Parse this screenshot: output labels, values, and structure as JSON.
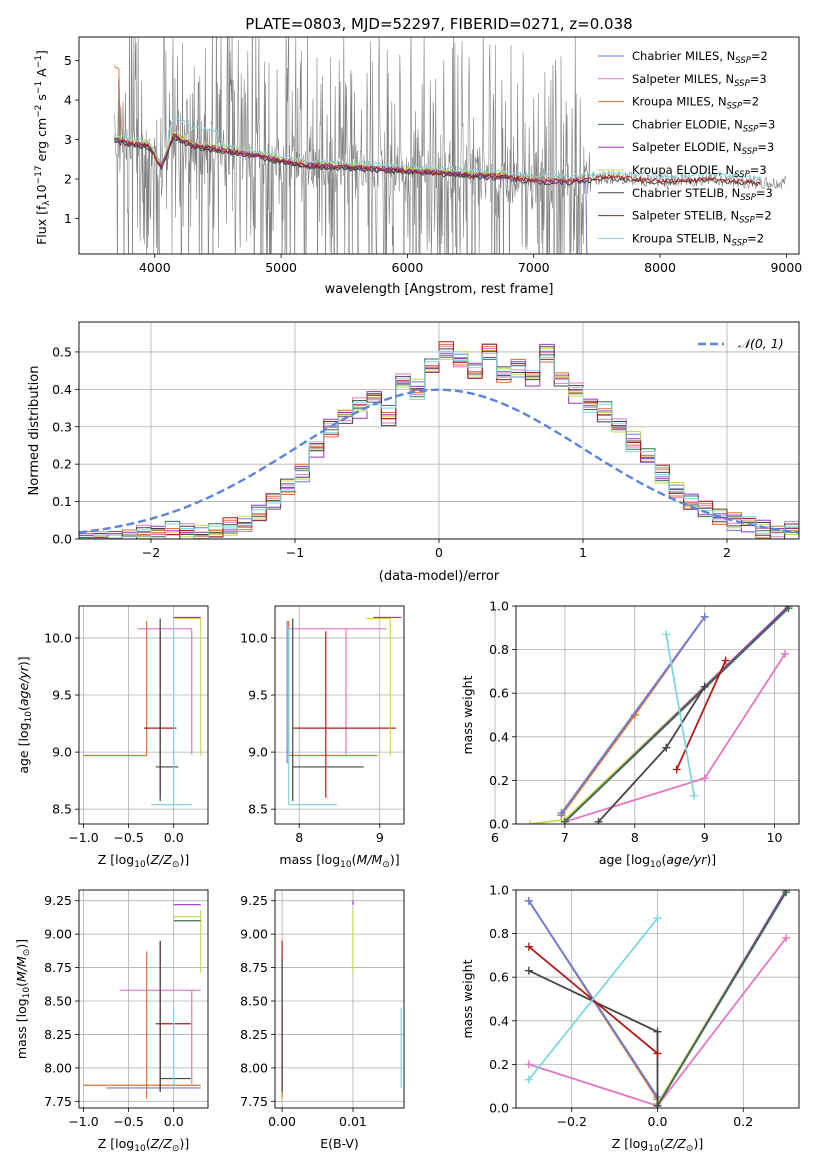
{
  "title": "PLATE=0803, MJD=52297, FIBERID=0271, z=0.038",
  "colors": {
    "chabrier_miles": "#6b7fd7",
    "salpeter_miles": "#e377c2",
    "kroupa_miles": "#d9722b",
    "chabrier_elodie": "#3c6e4f",
    "salpeter_elodie": "#9b30c9",
    "kroupa_elodie": "#c8d94b",
    "chabrier_stelib": "#444444",
    "salpeter_stelib": "#b01c1c",
    "kroupa_stelib": "#7fd6dc",
    "data_spectrum": "#808080",
    "normal_curve": "#5b86d6"
  },
  "legend_models": [
    {
      "key": "chabrier_miles",
      "prefix": "Chabrier MILES, N",
      "sub": "SSP",
      "suffix": "=2"
    },
    {
      "key": "salpeter_miles",
      "prefix": "Salpeter MILES, N",
      "sub": "SSP",
      "suffix": "=3"
    },
    {
      "key": "kroupa_miles",
      "prefix": "Kroupa MILES, N",
      "sub": "SSP",
      "suffix": "=2"
    },
    {
      "key": "chabrier_elodie",
      "prefix": "Chabrier ELODIE, N",
      "sub": "SSP",
      "suffix": "=3"
    },
    {
      "key": "salpeter_elodie",
      "prefix": "Salpeter ELODIE, N",
      "sub": "SSP",
      "suffix": "=3"
    },
    {
      "key": "kroupa_elodie",
      "prefix": "Kroupa ELODIE, N",
      "sub": "SSP",
      "suffix": "=3"
    },
    {
      "key": "chabrier_stelib",
      "prefix": "Chabrier STELIB, N",
      "sub": "SSP",
      "suffix": "=3"
    },
    {
      "key": "salpeter_stelib",
      "prefix": "Salpeter STELIB, N",
      "sub": "SSP",
      "suffix": "=2"
    },
    {
      "key": "kroupa_stelib",
      "prefix": "Kroupa STELIB, N",
      "sub": "SSP",
      "suffix": "=2"
    }
  ],
  "chart_data": [
    {
      "id": "spectrum",
      "type": "line",
      "xlabel": "wavelength [Angstrom, rest frame]",
      "ylabel": "Flux [f_λ 10^-17 erg cm^-2 s^-1 A^-1]",
      "xlim": [
        3400,
        9100
      ],
      "ylim": [
        0.1,
        5.6
      ],
      "xticks": [
        4000,
        5000,
        6000,
        7000,
        8000,
        9000
      ],
      "yticks": [
        1,
        2,
        3,
        4,
        5
      ],
      "grid": false,
      "legend_position": "top-right",
      "data_range": [
        3680,
        9000
      ],
      "model_continuum": [
        {
          "x": 3680,
          "y": 3.0
        },
        {
          "x": 3800,
          "y": 2.9
        },
        {
          "x": 3950,
          "y": 2.85
        },
        {
          "x": 4050,
          "y": 2.3
        },
        {
          "x": 4150,
          "y": 3.1
        },
        {
          "x": 4300,
          "y": 2.85
        },
        {
          "x": 4500,
          "y": 2.75
        },
        {
          "x": 4800,
          "y": 2.6
        },
        {
          "x": 5000,
          "y": 2.45
        },
        {
          "x": 5200,
          "y": 2.35
        },
        {
          "x": 5500,
          "y": 2.3
        },
        {
          "x": 5800,
          "y": 2.25
        },
        {
          "x": 6000,
          "y": 2.2
        },
        {
          "x": 6300,
          "y": 2.15
        },
        {
          "x": 6500,
          "y": 2.1
        },
        {
          "x": 6800,
          "y": 2.05
        },
        {
          "x": 7000,
          "y": 1.95
        },
        {
          "x": 7300,
          "y": 1.95
        },
        {
          "x": 7600,
          "y": 2.05
        },
        {
          "x": 8000,
          "y": 1.95
        },
        {
          "x": 8400,
          "y": 2.0
        },
        {
          "x": 8800,
          "y": 1.9
        }
      ],
      "series_ends": [
        {
          "key": "kroupa_miles",
          "end": 7420,
          "offset": 0.05
        },
        {
          "key": "salpeter_miles",
          "end": 7420,
          "offset": -0.03
        },
        {
          "key": "chabrier_miles",
          "end": 7420,
          "offset": 0.0
        },
        {
          "key": "kroupa_elodie",
          "end": 6800,
          "offset": 0.08
        },
        {
          "key": "salpeter_elodie",
          "end": 6800,
          "offset": 0.02
        },
        {
          "key": "chabrier_elodie",
          "end": 6800,
          "offset": -0.02
        },
        {
          "key": "chabrier_stelib",
          "end": 8800,
          "offset": -0.04
        },
        {
          "key": "salpeter_stelib",
          "end": 8800,
          "offset": 0.0
        },
        {
          "key": "kroupa_stelib",
          "end": 8800,
          "offset": 0.12
        }
      ]
    },
    {
      "id": "residuals",
      "type": "bar",
      "xlabel": "(data-model)/error",
      "ylabel": "Normed distribution",
      "xlim": [
        -2.5,
        2.5
      ],
      "ylim": [
        0,
        0.58
      ],
      "xticks": [
        -2,
        -1,
        0,
        1,
        2
      ],
      "yticks": [
        0.0,
        0.1,
        0.2,
        0.3,
        0.4,
        0.5
      ],
      "grid": true,
      "legend_position": "top-right",
      "legend_label": "𝒩(0, 1)",
      "bin_width": 0.1,
      "bin_start": -2.5,
      "histogram": [
        0.0,
        0.0,
        0.0,
        0.01,
        0.01,
        0.02,
        0.02,
        0.02,
        0.01,
        0.02,
        0.03,
        0.04,
        0.07,
        0.1,
        0.14,
        0.18,
        0.24,
        0.3,
        0.33,
        0.35,
        0.38,
        0.33,
        0.42,
        0.4,
        0.46,
        0.5,
        0.48,
        0.45,
        0.5,
        0.44,
        0.46,
        0.43,
        0.5,
        0.43,
        0.39,
        0.36,
        0.34,
        0.3,
        0.26,
        0.22,
        0.17,
        0.13,
        0.1,
        0.08,
        0.06,
        0.05,
        0.04,
        0.03,
        0.02,
        0.02
      ]
    },
    {
      "id": "age-vs-Z",
      "type": "scatter",
      "xlabel": "Z [log10(Z/Z⊙)]",
      "ylabel": "age [log10(age/yr)]",
      "xlim": [
        -1.05,
        0.38
      ],
      "ylim": [
        8.37,
        10.28
      ],
      "xticks": [
        -1.0,
        -0.5,
        0.0
      ],
      "yticks": [
        8.5,
        9.0,
        9.5,
        10.0
      ],
      "grid": true,
      "points": [
        {
          "key": "kroupa_miles",
          "x": -0.3,
          "xerr": [
            0.7,
            0.0
          ],
          "y": 8.97,
          "yerr": [
            0.0,
            1.18
          ]
        },
        {
          "key": "salpeter_miles",
          "x": 0.2,
          "xerr": [
            0.6,
            0.0
          ],
          "y": 10.08,
          "yerr": [
            1.1,
            0.0
          ]
        },
        {
          "key": "salpeter_stelib",
          "x": -0.15,
          "xerr": [
            0.18,
            0.18
          ],
          "y": 9.21,
          "yerr": [
            0.61,
            0.85
          ]
        },
        {
          "key": "chabrier_stelib",
          "x": -0.15,
          "xerr": [
            0.05,
            0.2
          ],
          "y": 8.87,
          "yerr": [
            0.3,
            1.3
          ]
        },
        {
          "key": "kroupa_stelib",
          "x": 0.0,
          "xerr": [
            0.25,
            0.2
          ],
          "y": 8.54,
          "yerr": [
            0.0,
            1.55
          ]
        },
        {
          "key": "kroupa_elodie",
          "x": 0.3,
          "xerr": [
            0.3,
            0.0
          ],
          "y": 10.17,
          "yerr": [
            1.2,
            0.0
          ]
        },
        {
          "key": "salpeter_elodie",
          "x": 0.3,
          "xerr": [
            0.3,
            0.0
          ],
          "y": 10.18,
          "yerr": [
            0.0,
            0.0
          ]
        }
      ]
    },
    {
      "id": "age-vs-mass",
      "type": "scatter",
      "xlabel": "mass [log10(M/M⊙)]",
      "ylabel": "",
      "xlim": [
        7.7,
        9.3
      ],
      "ylim": [
        8.37,
        10.28
      ],
      "xticks": [
        8,
        9
      ],
      "yticks": [
        8.5,
        9.0,
        9.5,
        10.0
      ],
      "grid": true,
      "points": [
        {
          "key": "kroupa_miles",
          "x": 7.87,
          "xerr": [
            0.0,
            1.1
          ],
          "y": 8.97,
          "yerr": [
            0.0,
            1.18
          ]
        },
        {
          "key": "salpeter_miles",
          "x": 8.58,
          "xerr": [
            0.7,
            0.5
          ],
          "y": 10.08,
          "yerr": [
            1.1,
            0.0
          ]
        },
        {
          "key": "salpeter_stelib",
          "x": 8.33,
          "xerr": [
            0.4,
            0.87
          ],
          "y": 9.21,
          "yerr": [
            0.61,
            0.85
          ]
        },
        {
          "key": "chabrier_stelib",
          "x": 7.92,
          "xerr": [
            0.0,
            0.88
          ],
          "y": 8.87,
          "yerr": [
            0.3,
            1.3
          ]
        },
        {
          "key": "kroupa_stelib",
          "x": 7.87,
          "xerr": [
            0.0,
            0.6
          ],
          "y": 8.54,
          "yerr": [
            0.0,
            1.55
          ]
        },
        {
          "key": "chabrier_miles",
          "x": 7.85,
          "xerr": [
            0.0,
            0.0
          ],
          "y": 9.5,
          "yerr": [
            0.6,
            0.65
          ]
        },
        {
          "key": "kroupa_elodie",
          "x": 9.13,
          "xerr": [
            0.3,
            0.0
          ],
          "y": 10.17,
          "yerr": [
            1.2,
            0.0
          ]
        },
        {
          "key": "salpeter_elodie",
          "x": 9.22,
          "xerr": [
            0.3,
            0.05
          ],
          "y": 10.18,
          "yerr": [
            0.0,
            0.0
          ]
        }
      ]
    },
    {
      "id": "mass-weight-vs-age",
      "type": "line",
      "xlabel": "age [log10(age/yr)]",
      "ylabel": "mass weight",
      "xlim": [
        6.3,
        10.35
      ],
      "ylim": [
        0.0,
        1.0
      ],
      "xticks": [
        6,
        7,
        8,
        9,
        10
      ],
      "yticks": [
        0.0,
        0.2,
        0.4,
        0.6,
        0.8,
        1.0
      ],
      "grid": true,
      "series": [
        {
          "key": "kroupa_miles",
          "points": [
            [
              6.95,
              0.04
            ],
            [
              8.0,
              0.5
            ],
            [
              9.0,
              0.95
            ]
          ]
        },
        {
          "key": "chabrier_miles",
          "points": [
            [
              6.95,
              0.05
            ],
            [
              9.0,
              0.95
            ]
          ]
        },
        {
          "key": "salpeter_miles",
          "points": [
            [
              7.0,
              0.01
            ],
            [
              9.0,
              0.21
            ],
            [
              10.15,
              0.78
            ]
          ]
        },
        {
          "key": "kroupa_elodie",
          "points": [
            [
              6.5,
              0.0
            ],
            [
              7.0,
              0.02
            ],
            [
              10.2,
              1.0
            ]
          ]
        },
        {
          "key": "salpeter_elodie",
          "points": [
            [
              7.0,
              0.01
            ],
            [
              10.2,
              1.0
            ]
          ]
        },
        {
          "key": "chabrier_elodie",
          "points": [
            [
              7.0,
              0.01
            ],
            [
              10.2,
              0.99
            ]
          ]
        },
        {
          "key": "chabrier_stelib",
          "points": [
            [
              7.48,
              0.01
            ],
            [
              8.45,
              0.35
            ],
            [
              9.0,
              0.63
            ]
          ]
        },
        {
          "key": "salpeter_stelib",
          "points": [
            [
              8.6,
              0.25
            ],
            [
              9.3,
              0.75
            ]
          ]
        },
        {
          "key": "kroupa_stelib",
          "points": [
            [
              8.45,
              0.87
            ],
            [
              8.85,
              0.13
            ]
          ]
        }
      ]
    },
    {
      "id": "mass-vs-Z",
      "type": "scatter",
      "xlabel": "Z [log10(Z/Z⊙)]",
      "ylabel": "mass [log10(M/M⊙)]",
      "xlim": [
        -1.05,
        0.38
      ],
      "ylim": [
        7.7,
        9.33
      ],
      "xticks": [
        -1.0,
        -0.5,
        0.0
      ],
      "yticks": [
        7.75,
        8.0,
        8.25,
        8.5,
        8.75,
        9.0,
        9.25
      ],
      "grid": true,
      "points": [
        {
          "key": "kroupa_miles",
          "x": -0.3,
          "xerr": [
            0.7,
            0.6
          ],
          "y": 7.87,
          "yerr": [
            0.1,
            1.0
          ]
        },
        {
          "key": "chabrier_miles",
          "x": -0.3,
          "xerr": [
            0.45,
            0.6
          ],
          "y": 7.85,
          "yerr": [
            0.0,
            0.0
          ]
        },
        {
          "key": "salpeter_miles",
          "x": 0.2,
          "xerr": [
            0.8,
            0.1
          ],
          "y": 8.58,
          "yerr": [
            0.7,
            0.0
          ]
        },
        {
          "key": "salpeter_stelib",
          "x": -0.15,
          "xerr": [
            0.05,
            0.34
          ],
          "y": 8.33,
          "yerr": [
            0.5,
            0.62
          ]
        },
        {
          "key": "chabrier_stelib",
          "x": -0.15,
          "xerr": [
            0.0,
            0.34
          ],
          "y": 7.92,
          "yerr": [
            0.1,
            1.03
          ]
        },
        {
          "key": "kroupa_stelib",
          "x": 0.0,
          "xerr": [
            0.0,
            0.0
          ],
          "y": 8.1,
          "yerr": [
            0.25,
            0.35
          ]
        },
        {
          "key": "kroupa_elodie",
          "x": 0.3,
          "xerr": [
            0.3,
            0.0
          ],
          "y": 9.13,
          "yerr": [
            0.42,
            0.05
          ]
        },
        {
          "key": "salpeter_elodie",
          "x": 0.3,
          "xerr": [
            0.3,
            0.0
          ],
          "y": 9.22,
          "yerr": [
            0.0,
            0.0
          ]
        },
        {
          "key": "chabrier_elodie",
          "x": 0.3,
          "xerr": [
            0.3,
            0.0
          ],
          "y": 9.1,
          "yerr": [
            0.0,
            0.0
          ]
        }
      ]
    },
    {
      "id": "mass-vs-EBV",
      "type": "scatter",
      "xlabel": "E(B-V)",
      "ylabel": "",
      "xlim": [
        -0.001,
        0.0172
      ],
      "ylim": [
        7.7,
        9.33
      ],
      "xticks": [
        0.0,
        0.01
      ],
      "yticks": [
        7.75,
        8.0,
        8.25,
        8.5,
        8.75,
        9.0,
        9.25
      ],
      "grid": true,
      "points": [
        {
          "key": "kroupa_miles",
          "x": 0.0,
          "y": 7.87,
          "yerr": [
            0.1,
            0.6
          ]
        },
        {
          "key": "salpeter_stelib",
          "x": 0.0,
          "y": 8.33,
          "yerr": [
            0.5,
            0.62
          ]
        },
        {
          "key": "chabrier_stelib",
          "x": 0.0,
          "y": 7.92,
          "yerr": [
            0.1,
            0.9
          ]
        },
        {
          "key": "kroupa_elodie",
          "x": 0.01,
          "y": 9.13,
          "yerr": [
            0.42,
            0.05
          ]
        },
        {
          "key": "salpeter_elodie",
          "x": 0.01,
          "y": 9.22,
          "yerr": [
            0.0,
            0.03
          ]
        },
        {
          "key": "kroupa_stelib",
          "x": 0.0168,
          "y": 8.1,
          "yerr": [
            0.25,
            0.35
          ]
        }
      ]
    },
    {
      "id": "mass-weight-vs-Z",
      "type": "line",
      "xlabel": "Z [log10(Z/Z⊙)]",
      "ylabel": "mass weight",
      "xlim": [
        -0.33,
        0.33
      ],
      "ylim": [
        0.0,
        1.0
      ],
      "xticks": [
        -0.2,
        0.0,
        0.2
      ],
      "yticks": [
        0.0,
        0.2,
        0.4,
        0.6,
        0.8,
        1.0
      ],
      "grid": true,
      "series": [
        {
          "key": "kroupa_miles",
          "points": [
            [
              -0.3,
              0.95
            ],
            [
              0.0,
              0.04
            ]
          ]
        },
        {
          "key": "chabrier_miles",
          "points": [
            [
              -0.3,
              0.95
            ],
            [
              0.0,
              0.05
            ]
          ]
        },
        {
          "key": "salpeter_miles",
          "points": [
            [
              -0.3,
              0.2
            ],
            [
              0.0,
              0.01
            ],
            [
              0.3,
              0.78
            ]
          ]
        },
        {
          "key": "kroupa_elodie",
          "points": [
            [
              0.0,
              0.02
            ],
            [
              0.3,
              1.0
            ]
          ]
        },
        {
          "key": "salpeter_elodie",
          "points": [
            [
              0.0,
              0.01
            ],
            [
              0.3,
              1.0
            ]
          ]
        },
        {
          "key": "chabrier_elodie",
          "points": [
            [
              0.0,
              0.01
            ],
            [
              0.3,
              0.99
            ]
          ]
        },
        {
          "key": "chabrier_stelib",
          "points": [
            [
              -0.3,
              0.63
            ],
            [
              0.0,
              0.35
            ],
            [
              0.0,
              0.01
            ]
          ]
        },
        {
          "key": "salpeter_stelib",
          "points": [
            [
              -0.3,
              0.74
            ],
            [
              0.0,
              0.25
            ]
          ]
        },
        {
          "key": "kroupa_stelib",
          "points": [
            [
              -0.3,
              0.13
            ],
            [
              0.0,
              0.87
            ]
          ]
        }
      ]
    }
  ]
}
